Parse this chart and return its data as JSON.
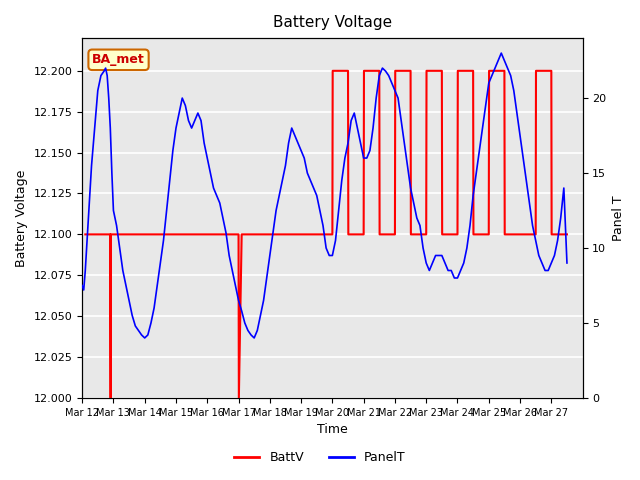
{
  "title": "Battery Voltage",
  "xlabel": "Time",
  "ylabel_left": "Battery Voltage",
  "ylabel_right": "Panel T",
  "xlim": [
    0,
    16
  ],
  "ylim_left": [
    12.0,
    12.22
  ],
  "ylim_right": [
    0,
    24
  ],
  "x_tick_labels": [
    "Mar 12",
    "Mar 13",
    "Mar 14",
    "Mar 15",
    "Mar 16",
    "Mar 17",
    "Mar 18",
    "Mar 19",
    "Mar 20",
    "Mar 21",
    "Mar 22",
    "Mar 23",
    "Mar 24",
    "Mar 25",
    "Mar 26",
    "Mar 27"
  ],
  "background_color": "#ffffff",
  "plot_bg_color": "#e8e8e8",
  "grid_color": "#ffffff",
  "annotation_label": "BA_met",
  "annotation_bg": "#ffffcc",
  "annotation_border": "#cc6600",
  "annotation_text_color": "#cc0000",
  "batt_color": "#ff0000",
  "panel_color": "#0000ff",
  "legend_batt": "BattV",
  "legend_panel": "PanelT",
  "batt_v_segments": [
    {
      "x": [
        0.1,
        0.9
      ],
      "y": [
        12.1,
        12.1
      ]
    },
    {
      "x": [
        0.9,
        0.91
      ],
      "y": [
        12.1,
        12.0
      ]
    },
    {
      "x": [
        0.91,
        1.0
      ],
      "y": [
        12.1,
        12.1
      ]
    },
    {
      "x": [
        1.0,
        5.0
      ],
      "y": [
        12.1,
        12.1
      ]
    },
    {
      "x": [
        5.0,
        5.01
      ],
      "y": [
        12.1,
        12.0
      ]
    },
    {
      "x": [
        5.01,
        5.1
      ],
      "y": [
        12.0,
        12.1
      ]
    },
    {
      "x": [
        5.1,
        8.0
      ],
      "y": [
        12.1,
        12.1
      ]
    },
    {
      "x": [
        8.0,
        8.01
      ],
      "y": [
        12.1,
        12.2
      ]
    },
    {
      "x": [
        8.01,
        8.5
      ],
      "y": [
        12.2,
        12.2
      ]
    },
    {
      "x": [
        8.5,
        8.51
      ],
      "y": [
        12.2,
        12.1
      ]
    },
    {
      "x": [
        8.51,
        9.0
      ],
      "y": [
        12.1,
        12.1
      ]
    },
    {
      "x": [
        9.0,
        9.01
      ],
      "y": [
        12.1,
        12.2
      ]
    },
    {
      "x": [
        9.01,
        9.5
      ],
      "y": [
        12.2,
        12.2
      ]
    },
    {
      "x": [
        9.5,
        9.51
      ],
      "y": [
        12.2,
        12.1
      ]
    },
    {
      "x": [
        9.51,
        10.0
      ],
      "y": [
        12.1,
        12.1
      ]
    },
    {
      "x": [
        10.0,
        10.01
      ],
      "y": [
        12.1,
        12.2
      ]
    },
    {
      "x": [
        10.01,
        10.5
      ],
      "y": [
        12.2,
        12.2
      ]
    },
    {
      "x": [
        10.5,
        10.51
      ],
      "y": [
        12.2,
        12.1
      ]
    },
    {
      "x": [
        10.51,
        11.0
      ],
      "y": [
        12.1,
        12.1
      ]
    },
    {
      "x": [
        11.0,
        11.01
      ],
      "y": [
        12.1,
        12.2
      ]
    },
    {
      "x": [
        11.01,
        11.5
      ],
      "y": [
        12.2,
        12.2
      ]
    },
    {
      "x": [
        11.5,
        11.51
      ],
      "y": [
        12.2,
        12.1
      ]
    },
    {
      "x": [
        11.51,
        12.0
      ],
      "y": [
        12.1,
        12.1
      ]
    },
    {
      "x": [
        12.0,
        12.01
      ],
      "y": [
        12.1,
        12.2
      ]
    },
    {
      "x": [
        12.01,
        12.5
      ],
      "y": [
        12.2,
        12.2
      ]
    },
    {
      "x": [
        12.5,
        12.51
      ],
      "y": [
        12.2,
        12.1
      ]
    },
    {
      "x": [
        12.51,
        13.0
      ],
      "y": [
        12.1,
        12.1
      ]
    },
    {
      "x": [
        13.0,
        13.01
      ],
      "y": [
        12.1,
        12.2
      ]
    },
    {
      "x": [
        13.01,
        13.5
      ],
      "y": [
        12.2,
        12.2
      ]
    },
    {
      "x": [
        13.5,
        13.51
      ],
      "y": [
        12.2,
        12.1
      ]
    },
    {
      "x": [
        13.51,
        14.5
      ],
      "y": [
        12.1,
        12.1
      ]
    },
    {
      "x": [
        14.5,
        14.51
      ],
      "y": [
        12.1,
        12.2
      ]
    },
    {
      "x": [
        14.51,
        15.0
      ],
      "y": [
        12.2,
        12.2
      ]
    },
    {
      "x": [
        15.0,
        15.01
      ],
      "y": [
        12.2,
        12.1
      ]
    },
    {
      "x": [
        15.01,
        15.5
      ],
      "y": [
        12.1,
        12.1
      ]
    }
  ],
  "panel_t_x": [
    0.0,
    0.05,
    0.1,
    0.2,
    0.3,
    0.4,
    0.5,
    0.6,
    0.7,
    0.75,
    0.8,
    0.85,
    0.9,
    0.95,
    1.0,
    1.1,
    1.2,
    1.3,
    1.4,
    1.5,
    1.6,
    1.7,
    1.8,
    1.9,
    2.0,
    2.1,
    2.2,
    2.3,
    2.4,
    2.5,
    2.6,
    2.7,
    2.8,
    2.9,
    3.0,
    3.1,
    3.2,
    3.3,
    3.4,
    3.5,
    3.6,
    3.7,
    3.8,
    3.9,
    4.0,
    4.1,
    4.2,
    4.3,
    4.4,
    4.5,
    4.6,
    4.7,
    4.8,
    4.9,
    5.0,
    5.1,
    5.2,
    5.3,
    5.4,
    5.5,
    5.6,
    5.7,
    5.8,
    5.9,
    6.0,
    6.1,
    6.2,
    6.3,
    6.4,
    6.5,
    6.6,
    6.7,
    6.8,
    6.9,
    7.0,
    7.1,
    7.2,
    7.3,
    7.4,
    7.5,
    7.6,
    7.7,
    7.8,
    7.9,
    8.0,
    8.1,
    8.2,
    8.3,
    8.4,
    8.5,
    8.6,
    8.7,
    8.8,
    8.9,
    9.0,
    9.1,
    9.2,
    9.3,
    9.4,
    9.5,
    9.6,
    9.7,
    9.8,
    9.9,
    10.0,
    10.1,
    10.2,
    10.3,
    10.4,
    10.5,
    10.6,
    10.7,
    10.8,
    10.9,
    11.0,
    11.1,
    11.2,
    11.3,
    11.4,
    11.5,
    11.6,
    11.7,
    11.8,
    11.9,
    12.0,
    12.1,
    12.2,
    12.3,
    12.4,
    12.5,
    12.6,
    12.7,
    12.8,
    12.9,
    13.0,
    13.1,
    13.2,
    13.3,
    13.4,
    13.5,
    13.6,
    13.7,
    13.8,
    13.9,
    14.0,
    14.1,
    14.2,
    14.3,
    14.4,
    14.5,
    14.6,
    14.7,
    14.8,
    14.9,
    15.0,
    15.1,
    15.2,
    15.3,
    15.4,
    15.5
  ],
  "panel_t_y": [
    7.5,
    7.2,
    8.5,
    12.0,
    15.5,
    18.0,
    20.5,
    21.5,
    21.8,
    22.0,
    21.5,
    20.0,
    18.0,
    15.0,
    12.5,
    11.5,
    10.0,
    8.5,
    7.5,
    6.5,
    5.5,
    4.8,
    4.5,
    4.2,
    4.0,
    4.2,
    5.0,
    6.0,
    7.5,
    9.0,
    10.5,
    12.5,
    14.5,
    16.5,
    18.0,
    19.0,
    20.0,
    19.5,
    18.5,
    18.0,
    18.5,
    19.0,
    18.5,
    17.0,
    16.0,
    15.0,
    14.0,
    13.5,
    13.0,
    12.0,
    11.0,
    9.5,
    8.5,
    7.5,
    6.5,
    5.8,
    5.0,
    4.5,
    4.2,
    4.0,
    4.5,
    5.5,
    6.5,
    8.0,
    9.5,
    11.0,
    12.5,
    13.5,
    14.5,
    15.5,
    17.0,
    18.0,
    17.5,
    17.0,
    16.5,
    16.0,
    15.0,
    14.5,
    14.0,
    13.5,
    12.5,
    11.5,
    10.0,
    9.5,
    9.5,
    10.5,
    12.5,
    14.5,
    16.0,
    17.0,
    18.5,
    19.0,
    18.0,
    17.0,
    16.0,
    16.0,
    16.5,
    18.0,
    20.0,
    21.5,
    22.0,
    21.8,
    21.5,
    21.0,
    20.5,
    20.0,
    18.5,
    17.0,
    15.5,
    14.0,
    13.0,
    12.0,
    11.5,
    10.0,
    9.0,
    8.5,
    9.0,
    9.5,
    9.5,
    9.5,
    9.0,
    8.5,
    8.5,
    8.0,
    8.0,
    8.5,
    9.0,
    10.0,
    11.5,
    13.5,
    15.0,
    16.5,
    18.0,
    19.5,
    21.0,
    21.5,
    22.0,
    22.5,
    23.0,
    22.5,
    22.0,
    21.5,
    20.5,
    19.0,
    17.5,
    16.0,
    14.5,
    13.0,
    11.5,
    10.5,
    9.5,
    9.0,
    8.5,
    8.5,
    9.0,
    9.5,
    10.5,
    12.0,
    14.0,
    9.0
  ]
}
